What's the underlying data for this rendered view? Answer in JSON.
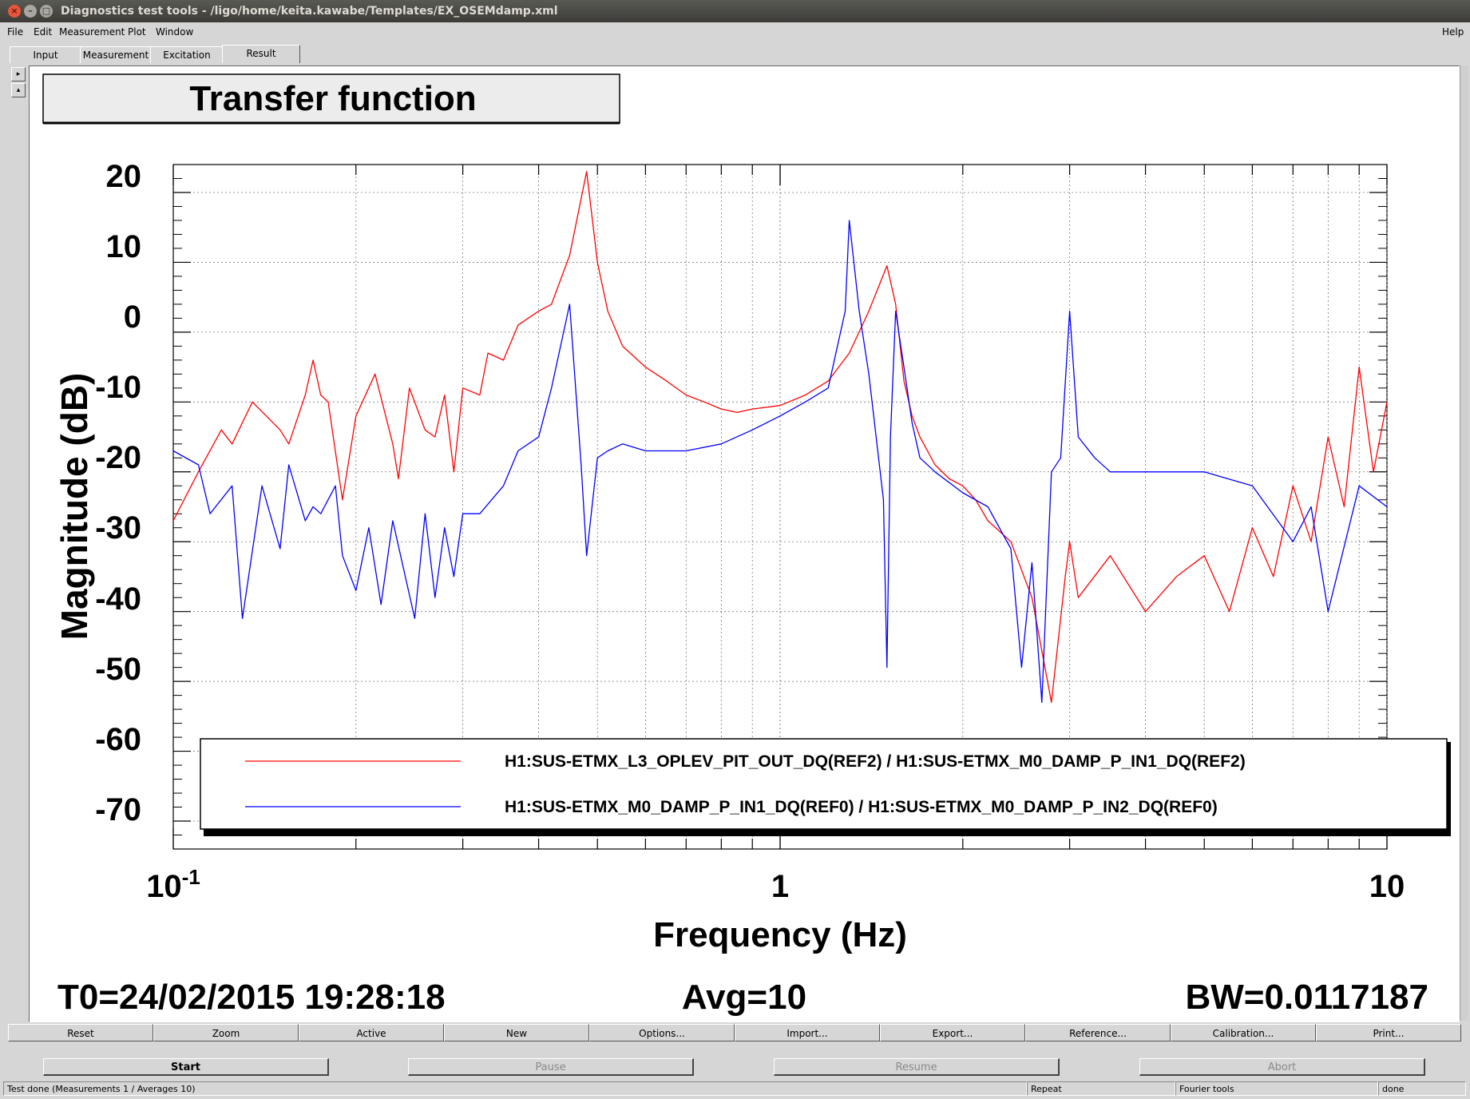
{
  "window": {
    "title": "Diagnostics test tools - /ligo/home/keita.kawabe/Templates/EX_OSEMdamp.xml",
    "close": "×",
    "minimize": "–",
    "maximize": "□"
  },
  "menu": {
    "file": "File",
    "edit": "Edit",
    "measurement": "Measurement",
    "plot": "Plot",
    "window": "Window",
    "help": "Help"
  },
  "tabs": {
    "input": "Input",
    "measurement": "Measurement",
    "excitation": "Excitation",
    "result": "Result"
  },
  "side": {
    "expand": "▸",
    "collapse": "▴"
  },
  "plot": {
    "title": "Transfer function",
    "ylabel": "Magnitude (dB)",
    "xlabel": "Frequency (Hz)",
    "yticks": [
      "20",
      "10",
      "0",
      "-10",
      "-20",
      "-30",
      "-40",
      "-50",
      "-60",
      "-70"
    ],
    "xtick_1": "1",
    "xtick_10": "10",
    "xtick_01_base": "10",
    "xtick_01_exp": "-1",
    "t0": "T0=24/02/2015 19:28:18",
    "avg": "Avg=10",
    "bw": "BW=0.0117187"
  },
  "chart_data": {
    "type": "line",
    "title": "Transfer function",
    "xlabel": "Frequency (Hz)",
    "ylabel": "Magnitude (dB)",
    "xscale": "log",
    "xlim": [
      0.1,
      10
    ],
    "ylim": [
      -74,
      24
    ],
    "grid": true,
    "legend_position": "bottom",
    "series": [
      {
        "name": "H1:SUS-ETMX_L3_OPLEV_PIT_OUT_DQ(REF2) / H1:SUS-ETMX_M0_DAMP_P_IN1_DQ(REF2)",
        "color": "#ff0000",
        "x": [
          0.1,
          0.11,
          0.12,
          0.125,
          0.135,
          0.15,
          0.155,
          0.165,
          0.17,
          0.175,
          0.18,
          0.19,
          0.2,
          0.215,
          0.23,
          0.235,
          0.245,
          0.26,
          0.27,
          0.28,
          0.29,
          0.3,
          0.32,
          0.33,
          0.35,
          0.37,
          0.4,
          0.42,
          0.45,
          0.48,
          0.5,
          0.52,
          0.55,
          0.6,
          0.65,
          0.7,
          0.75,
          0.8,
          0.85,
          0.9,
          1.0,
          1.1,
          1.2,
          1.3,
          1.4,
          1.5,
          1.55,
          1.6,
          1.65,
          1.7,
          1.8,
          1.9,
          2.0,
          2.1,
          2.2,
          2.4,
          2.6,
          2.8,
          2.95,
          3.0,
          3.1,
          3.5,
          4.0,
          4.5,
          5.0,
          5.5,
          6.0,
          6.5,
          7.0,
          7.5,
          8.0,
          8.5,
          9.0,
          9.5,
          10.0
        ],
        "y": [
          -27,
          -20,
          -14,
          -16,
          -10,
          -14,
          -16,
          -9,
          -4,
          -9,
          -10,
          -24,
          -12,
          -6,
          -16,
          -21,
          -8,
          -14,
          -15,
          -9,
          -20,
          -8,
          -9,
          -3,
          -4,
          1,
          3,
          4,
          11,
          23,
          10,
          3,
          -2,
          -5,
          -7,
          -9,
          -10,
          -11,
          -11.5,
          -11,
          -10.5,
          -9,
          -7,
          -3,
          3,
          9.5,
          4,
          -7,
          -12,
          -15,
          -19,
          -21,
          -22,
          -24,
          -27,
          -30,
          -38,
          -53,
          -35,
          -30,
          -38,
          -32,
          -40,
          -35,
          -32,
          -40,
          -28,
          -35,
          -22,
          -30,
          -15,
          -25,
          -5,
          -20,
          -10
        ]
      },
      {
        "name": "H1:SUS-ETMX_M0_DAMP_P_IN1_DQ(REF0) / H1:SUS-ETMX_M0_DAMP_P_IN2_DQ(REF0)",
        "color": "#0000ff",
        "x": [
          0.1,
          0.11,
          0.115,
          0.125,
          0.13,
          0.14,
          0.15,
          0.155,
          0.165,
          0.17,
          0.175,
          0.185,
          0.19,
          0.2,
          0.21,
          0.22,
          0.23,
          0.25,
          0.26,
          0.27,
          0.28,
          0.29,
          0.3,
          0.32,
          0.35,
          0.37,
          0.4,
          0.42,
          0.45,
          0.47,
          0.48,
          0.5,
          0.52,
          0.55,
          0.6,
          0.7,
          0.8,
          0.9,
          1.0,
          1.1,
          1.2,
          1.28,
          1.3,
          1.35,
          1.4,
          1.48,
          1.5,
          1.52,
          1.55,
          1.6,
          1.65,
          1.7,
          1.8,
          2.0,
          2.2,
          2.4,
          2.5,
          2.6,
          2.7,
          2.8,
          2.9,
          3.0,
          3.1,
          3.3,
          3.5,
          4.0,
          5.0,
          6.0,
          7.0,
          7.5,
          8.0,
          9.0,
          10.0
        ],
        "y": [
          -17,
          -19,
          -26,
          -22,
          -41,
          -22,
          -31,
          -19,
          -27,
          -25,
          -26,
          -22,
          -32,
          -37,
          -28,
          -39,
          -27,
          -41,
          -26,
          -38,
          -28,
          -35,
          -26,
          -26,
          -22,
          -17,
          -15,
          -8,
          4,
          -19,
          -32,
          -18,
          -17,
          -16,
          -17,
          -17,
          -16,
          -14,
          -12,
          -10,
          -8,
          3,
          16,
          3,
          -6,
          -24,
          -48,
          -15,
          3,
          -5,
          -13,
          -18,
          -20,
          -23,
          -25,
          -31,
          -48,
          -33,
          -53,
          -20,
          -18,
          3,
          -15,
          -18,
          -20,
          -20,
          -20,
          -22,
          -30,
          -25,
          -40,
          -22,
          -25
        ]
      }
    ]
  },
  "buttons": {
    "reset": "Reset",
    "zoom": "Zoom",
    "active": "Active",
    "new": "New",
    "options": "Options...",
    "import": "Import...",
    "export": "Export...",
    "reference": "Reference...",
    "calibration": "Calibration...",
    "print": "Print...",
    "start": "Start",
    "pause": "Pause",
    "resume": "Resume",
    "abort": "Abort"
  },
  "status": {
    "message": "Test done (Measurements 1 / Averages 10)",
    "mode": "Repeat",
    "tool": "Fourier tools",
    "state": "done"
  }
}
